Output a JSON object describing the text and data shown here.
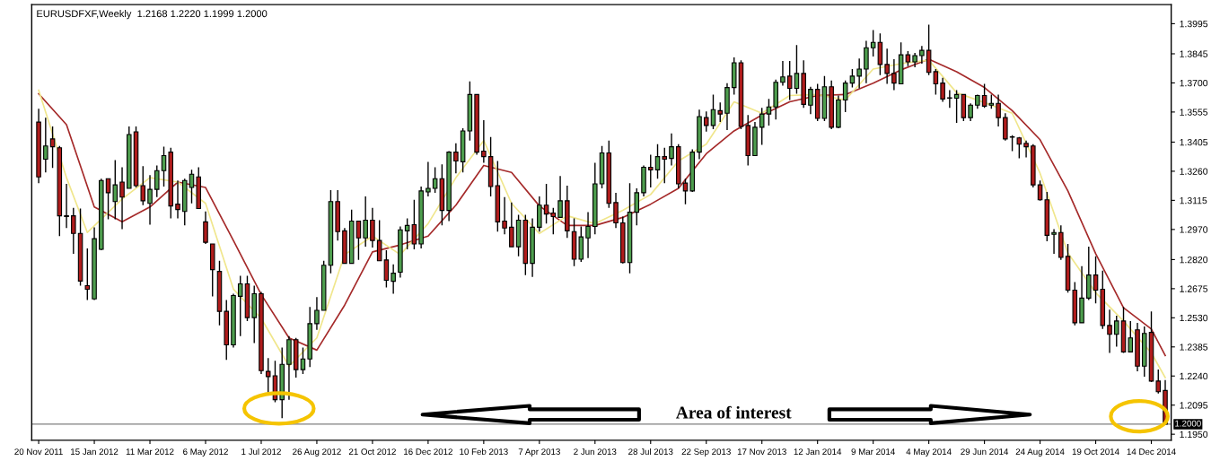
{
  "chart_data": {
    "type": "candlestick",
    "title": "EURUSDFXF,Weekly  1.2168 1.2220 1.1999 1.2000",
    "annotations": [
      "Area of interest"
    ],
    "xlim": [
      "2011-11-13",
      "2015-01-03"
    ],
    "xticks": [
      {
        "value": "2011-11-20",
        "label": "20 Nov 2011"
      },
      {
        "value": "2012-01-15",
        "label": "15 Jan 2012"
      },
      {
        "value": "2012-03-11",
        "label": "11 Mar 2012"
      },
      {
        "value": "2012-05-06",
        "label": "6 May 2012"
      },
      {
        "value": "2012-07-01",
        "label": "1 Jul 2012"
      },
      {
        "value": "2012-08-26",
        "label": "26 Aug 2012"
      },
      {
        "value": "2012-10-21",
        "label": "21 Oct 2012"
      },
      {
        "value": "2012-12-16",
        "label": "16 Dec 2012"
      },
      {
        "value": "2013-02-10",
        "label": "10 Feb 2013"
      },
      {
        "value": "2013-04-07",
        "label": "7 Apr 2013"
      },
      {
        "value": "2013-06-02",
        "label": "2 Jun 2013"
      },
      {
        "value": "2013-07-28",
        "label": "28 Jul 2013"
      },
      {
        "value": "2013-09-22",
        "label": "22 Sep 2013"
      },
      {
        "value": "2013-11-17",
        "label": "17 Nov 2013"
      },
      {
        "value": "2014-01-12",
        "label": "12 Jan 2014"
      },
      {
        "value": "2014-03-09",
        "label": "9 Mar 2014"
      },
      {
        "value": "2014-05-04",
        "label": "4 May 2014"
      },
      {
        "value": "2014-06-29",
        "label": "29 Jun 2014"
      },
      {
        "value": "2014-08-24",
        "label": "24 Aug 2014"
      },
      {
        "value": "2014-10-19",
        "label": "19 Oct 2014"
      },
      {
        "value": "2014-12-14",
        "label": "14 Dec 2014"
      }
    ],
    "ylim": [
      1.192,
      1.409
    ],
    "yticks": [
      1.3995,
      1.3845,
      {
        "value": 1.37,
        "label": "1.3700"
      },
      1.3555,
      1.3405,
      {
        "value": 1.326,
        "label": "1.3260"
      },
      1.3115,
      {
        "value": 1.297,
        "label": "1.2970"
      },
      {
        "value": 1.282,
        "label": "1.2820"
      },
      1.2675,
      {
        "value": 1.253,
        "label": "1.2530"
      },
      1.2385,
      {
        "value": 1.224,
        "label": "1.2240"
      },
      1.2095,
      {
        "value": 1.195,
        "label": "1.1950"
      }
    ],
    "ref_lines": [
      {
        "axis": "y",
        "value": 1.2,
        "label": "1.2000",
        "color": "#808080"
      }
    ],
    "series": [
      {
        "type": "line",
        "color": "#a52a2a",
        "x": [
          "2011-11-20",
          "2011-12-18",
          "2012-01-15",
          "2012-02-12",
          "2012-03-11",
          "2012-04-08",
          "2012-05-06",
          "2012-06-03",
          "2012-07-01",
          "2012-07-29",
          "2012-08-26",
          "2012-09-23",
          "2012-10-21",
          "2012-11-18",
          "2012-12-16",
          "2013-01-13",
          "2013-02-10",
          "2013-03-10",
          "2013-04-07",
          "2013-05-05",
          "2013-06-02",
          "2013-06-30",
          "2013-07-28",
          "2013-08-25",
          "2013-09-22",
          "2013-10-20",
          "2013-11-17",
          "2013-12-15",
          "2014-01-12",
          "2014-02-09",
          "2014-03-09",
          "2014-04-06",
          "2014-05-04",
          "2014-06-01",
          "2014-06-29",
          "2014-07-27",
          "2014-08-24",
          "2014-09-21",
          "2014-10-19",
          "2014-11-16",
          "2014-12-14",
          "2014-12-28"
        ],
        "values": [
          1.3646,
          1.3492,
          1.3082,
          1.3008,
          1.3082,
          1.3206,
          1.3179,
          1.2915,
          1.2646,
          1.243,
          1.2369,
          1.2593,
          1.2858,
          1.2893,
          1.2937,
          1.3091,
          1.3289,
          1.3254,
          1.3087,
          1.299,
          1.299,
          1.303,
          1.3096,
          1.3175,
          1.3347,
          1.3461,
          1.354,
          1.3606,
          1.3637,
          1.3642,
          1.3699,
          1.3765,
          1.3818,
          1.3756,
          1.3677,
          1.3562,
          1.3417,
          1.3162,
          1.2849,
          1.258,
          1.2474,
          1.2342
        ]
      },
      {
        "type": "line",
        "color": "#f0e68c",
        "x": [
          "2011-11-20",
          "2011-12-18",
          "2012-01-08",
          "2012-02-12",
          "2012-03-11",
          "2012-04-08",
          "2012-05-06",
          "2012-06-03",
          "2012-07-01",
          "2012-07-29",
          "2012-08-26",
          "2012-09-23",
          "2012-10-21",
          "2012-11-18",
          "2012-12-16",
          "2013-01-13",
          "2013-02-10",
          "2013-03-10",
          "2013-04-07",
          "2013-05-05",
          "2013-06-02",
          "2013-06-30",
          "2013-07-28",
          "2013-08-25",
          "2013-09-22",
          "2013-10-20",
          "2013-11-17",
          "2013-12-15",
          "2014-01-12",
          "2014-02-09",
          "2014-03-09",
          "2014-04-06",
          "2014-05-04",
          "2014-06-01",
          "2014-06-29",
          "2014-07-27",
          "2014-08-24",
          "2014-09-21",
          "2014-10-19",
          "2014-11-16",
          "2014-12-14",
          "2014-12-28"
        ],
        "values": [
          1.3664,
          1.3228,
          1.2955,
          1.3122,
          1.3228,
          1.3206,
          1.31,
          1.2673,
          1.2527,
          1.2289,
          1.243,
          1.2845,
          1.2937,
          1.2845,
          1.2999,
          1.3228,
          1.3413,
          1.31,
          1.295,
          1.3038,
          1.2999,
          1.3065,
          1.3144,
          1.3311,
          1.3395,
          1.3606,
          1.3549,
          1.3637,
          1.3642,
          1.3615,
          1.3769,
          1.3796,
          1.3813,
          1.3651,
          1.3602,
          1.3549,
          1.325,
          1.2853,
          1.2655,
          1.2514,
          1.2355,
          1.2232
        ]
      },
      {
        "x": [
          "2011-11-20",
          "2011-11-27",
          "2011-12-04",
          "2011-12-11",
          "2011-12-18",
          "2011-12-25",
          "2012-01-01",
          "2012-01-08",
          "2012-01-15",
          "2012-01-22",
          "2012-01-29",
          "2012-02-05",
          "2012-02-12",
          "2012-02-19",
          "2012-02-26",
          "2012-03-04",
          "2012-03-11",
          "2012-03-18",
          "2012-03-25",
          "2012-04-01",
          "2012-04-08",
          "2012-04-15",
          "2012-04-22",
          "2012-04-29",
          "2012-05-06",
          "2012-05-13",
          "2012-05-20",
          "2012-05-27",
          "2012-06-03",
          "2012-06-10",
          "2012-06-17",
          "2012-06-24",
          "2012-07-01",
          "2012-07-08",
          "2012-07-15",
          "2012-07-22",
          "2012-07-29",
          "2012-08-05",
          "2012-08-12",
          "2012-08-19",
          "2012-08-26",
          "2012-09-02",
          "2012-09-09",
          "2012-09-16",
          "2012-09-23",
          "2012-09-30",
          "2012-10-07",
          "2012-10-14",
          "2012-10-21",
          "2012-10-28",
          "2012-11-04",
          "2012-11-11",
          "2012-11-18",
          "2012-11-25",
          "2012-12-02",
          "2012-12-09",
          "2012-12-16",
          "2012-12-23",
          "2012-12-30",
          "2013-01-06",
          "2013-01-13",
          "2013-01-20",
          "2013-01-27",
          "2013-02-03",
          "2013-02-10",
          "2013-02-17",
          "2013-02-24",
          "2013-03-03",
          "2013-03-10",
          "2013-03-17",
          "2013-03-24",
          "2013-03-31",
          "2013-04-07",
          "2013-04-14",
          "2013-04-21",
          "2013-04-28",
          "2013-05-05",
          "2013-05-12",
          "2013-05-19",
          "2013-05-26",
          "2013-06-02",
          "2013-06-09",
          "2013-06-16",
          "2013-06-23",
          "2013-06-30",
          "2013-07-07",
          "2013-07-14",
          "2013-07-21",
          "2013-07-28",
          "2013-08-04",
          "2013-08-11",
          "2013-08-18",
          "2013-08-25",
          "2013-09-01",
          "2013-09-08",
          "2013-09-15",
          "2013-09-22",
          "2013-09-29",
          "2013-10-06",
          "2013-10-13",
          "2013-10-20",
          "2013-10-27",
          "2013-11-03",
          "2013-11-10",
          "2013-11-17",
          "2013-11-24",
          "2013-12-01",
          "2013-12-08",
          "2013-12-15",
          "2013-12-22",
          "2013-12-29",
          "2014-01-05",
          "2014-01-12",
          "2014-01-19",
          "2014-01-26",
          "2014-02-02",
          "2014-02-09",
          "2014-02-16",
          "2014-02-23",
          "2014-03-02",
          "2014-03-09",
          "2014-03-16",
          "2014-03-23",
          "2014-03-30",
          "2014-04-06",
          "2014-04-13",
          "2014-04-20",
          "2014-04-27",
          "2014-05-04",
          "2014-05-11",
          "2014-05-18",
          "2014-05-25",
          "2014-06-01",
          "2014-06-08",
          "2014-06-15",
          "2014-06-22",
          "2014-06-29",
          "2014-07-06",
          "2014-07-13",
          "2014-07-20",
          "2014-07-27",
          "2014-08-03",
          "2014-08-10",
          "2014-08-17",
          "2014-08-24",
          "2014-08-31",
          "2014-09-07",
          "2014-09-14",
          "2014-09-21",
          "2014-09-28",
          "2014-10-05",
          "2014-10-12",
          "2014-10-19",
          "2014-10-26",
          "2014-11-02",
          "2014-11-09",
          "2014-11-16",
          "2014-11-23",
          "2014-11-30",
          "2014-12-07",
          "2014-12-14",
          "2014-12-21",
          "2014-12-28"
        ],
        "ohlc": [
          [
            1.3505,
            1.3571,
            1.3201,
            1.3232
          ],
          [
            1.332,
            1.3527,
            1.3254,
            1.3386
          ],
          [
            1.3421,
            1.3483,
            1.3276,
            1.3382
          ],
          [
            1.3377,
            1.3386,
            1.2937,
            1.3038
          ],
          [
            1.3038,
            1.3197,
            1.2977,
            1.3034
          ],
          [
            1.3038,
            1.3078,
            1.2849,
            1.295
          ],
          [
            1.295,
            1.3074,
            1.269,
            1.2713
          ],
          [
            1.269,
            1.2876,
            1.2619,
            1.2672
          ],
          [
            1.2624,
            1.2981,
            1.2619,
            1.2924
          ],
          [
            1.2871,
            1.3223,
            1.2867,
            1.3214
          ],
          [
            1.3223,
            1.3223,
            1.3021,
            1.3153
          ],
          [
            1.3109,
            1.3316,
            1.3021,
            1.3192
          ],
          [
            1.3206,
            1.328,
            1.2972,
            1.3131
          ],
          [
            1.3175,
            1.3483,
            1.3175,
            1.3443
          ],
          [
            1.3456,
            1.3483,
            1.3179,
            1.3188
          ],
          [
            1.3188,
            1.3285,
            1.3091,
            1.3113
          ],
          [
            1.31,
            1.3241,
            1.2994,
            1.317
          ],
          [
            1.317,
            1.3289,
            1.3131,
            1.3263
          ],
          [
            1.3263,
            1.3382,
            1.3184,
            1.3338
          ],
          [
            1.3355,
            1.3377,
            1.3025,
            1.3087
          ],
          [
            1.3096,
            1.3214,
            1.3025,
            1.3069
          ],
          [
            1.306,
            1.3223,
            1.299,
            1.3214
          ],
          [
            1.3179,
            1.3267,
            1.31,
            1.3245
          ],
          [
            1.3232,
            1.328,
            1.3074,
            1.3074
          ],
          [
            1.3008,
            1.306,
            1.2898,
            1.2906
          ],
          [
            1.2898,
            1.2898,
            1.2637,
            1.277
          ],
          [
            1.2761,
            1.2814,
            1.2492,
            1.2562
          ],
          [
            1.2562,
            1.2619,
            1.232,
            1.2395
          ],
          [
            1.2395,
            1.265,
            1.2382,
            1.2641
          ],
          [
            1.2637,
            1.2739,
            1.2439,
            1.2699
          ],
          [
            1.2699,
            1.2739,
            1.2514,
            1.2531
          ],
          [
            1.2531,
            1.269,
            1.2404,
            1.265
          ],
          [
            1.265,
            1.2659,
            1.225,
            1.2267
          ],
          [
            1.2263,
            1.2329,
            1.2153,
            1.2237
          ],
          [
            1.2241,
            1.2316,
            1.2109,
            1.2122
          ],
          [
            1.2122,
            1.2382,
            1.203,
            1.2298
          ],
          [
            1.2298,
            1.2439,
            1.2122,
            1.2421
          ],
          [
            1.2421,
            1.243,
            1.2232,
            1.2272
          ],
          [
            1.2272,
            1.2382,
            1.225,
            1.2325
          ],
          [
            1.2325,
            1.2584,
            1.2285,
            1.2501
          ],
          [
            1.2501,
            1.2633,
            1.247,
            1.2567
          ],
          [
            1.2567,
            1.2814,
            1.2567,
            1.2792
          ],
          [
            1.2792,
            1.3166,
            1.2752,
            1.3109
          ],
          [
            1.3109,
            1.3166,
            1.2915,
            1.2959
          ],
          [
            1.2963,
            1.2977,
            1.2801,
            1.2801
          ],
          [
            1.2801,
            1.3069,
            1.2801,
            1.3012
          ],
          [
            1.3012,
            1.3012,
            1.2818,
            1.2928
          ],
          [
            1.2928,
            1.3135,
            1.2884,
            1.3016
          ],
          [
            1.3016,
            1.3078,
            1.288,
            1.2915
          ],
          [
            1.2915,
            1.3016,
            1.2814,
            1.2814
          ],
          [
            1.2818,
            1.2867,
            1.2681,
            1.2717
          ],
          [
            1.2712,
            1.2796,
            1.265,
            1.2752
          ],
          [
            1.2757,
            1.2985,
            1.273,
            1.2968
          ],
          [
            1.2963,
            1.3025,
            1.2871,
            1.299
          ],
          [
            1.2994,
            1.3118,
            1.2871,
            1.2898
          ],
          [
            1.2898,
            1.3184,
            1.2876,
            1.3162
          ],
          [
            1.3157,
            1.3307,
            1.3135,
            1.3175
          ],
          [
            1.3175,
            1.328,
            1.3153,
            1.3223
          ],
          [
            1.3223,
            1.3294,
            1.299,
            1.3065
          ],
          [
            1.3065,
            1.336,
            1.3012,
            1.3355
          ],
          [
            1.3355,
            1.3399,
            1.325,
            1.3311
          ],
          [
            1.3307,
            1.3474,
            1.3254,
            1.3461
          ],
          [
            1.3461,
            1.3708,
            1.3413,
            1.3642
          ],
          [
            1.3642,
            1.3642,
            1.3342,
            1.3355
          ],
          [
            1.336,
            1.3514,
            1.3302,
            1.3333
          ],
          [
            1.3333,
            1.343,
            1.3135,
            1.3184
          ],
          [
            1.3188,
            1.3311,
            1.2959,
            1.3008
          ],
          [
            1.3012,
            1.3131,
            1.2946,
            1.2977
          ],
          [
            1.2981,
            1.3104,
            1.2884,
            1.2884
          ],
          [
            1.2884,
            1.3043,
            1.2836,
            1.3016
          ],
          [
            1.3016,
            1.3043,
            1.2743,
            1.2801
          ],
          [
            1.2801,
            1.3025,
            1.2734,
            1.2981
          ],
          [
            1.2981,
            1.3135,
            1.2959,
            1.3091
          ],
          [
            1.3091,
            1.3197,
            1.2999,
            1.3047
          ],
          [
            1.3052,
            1.3078,
            1.2946,
            1.3034
          ],
          [
            1.303,
            1.3236,
            1.303,
            1.3113
          ],
          [
            1.3113,
            1.3188,
            1.2928,
            1.2963
          ],
          [
            1.2959,
            1.3025,
            1.2787,
            1.2822
          ],
          [
            1.2822,
            1.2985,
            1.2809,
            1.2933
          ],
          [
            1.2928,
            1.3056,
            1.2827,
            1.2985
          ],
          [
            1.2985,
            1.3302,
            1.2946,
            1.3197
          ],
          [
            1.3197,
            1.3386,
            1.3175,
            1.3351
          ],
          [
            1.3351,
            1.3413,
            1.3078,
            1.31
          ],
          [
            1.3104,
            1.3153,
            1.2977,
            1.3003
          ],
          [
            1.3003,
            1.3034,
            1.2801,
            1.2805
          ],
          [
            1.2805,
            1.3201,
            1.2752,
            1.3056
          ],
          [
            1.3056,
            1.3175,
            1.299,
            1.3153
          ],
          [
            1.3153,
            1.3289,
            1.3135,
            1.328
          ],
          [
            1.328,
            1.3342,
            1.3179,
            1.3267
          ],
          [
            1.3267,
            1.3395,
            1.3223,
            1.3333
          ],
          [
            1.3333,
            1.3377,
            1.3201,
            1.332
          ],
          [
            1.3324,
            1.3448,
            1.3289,
            1.3382
          ],
          [
            1.3382,
            1.3395,
            1.3175,
            1.3197
          ],
          [
            1.3201,
            1.3223,
            1.3096,
            1.3162
          ],
          [
            1.3162,
            1.3369,
            1.3157,
            1.3355
          ],
          [
            1.3355,
            1.3567,
            1.332,
            1.3532
          ],
          [
            1.3527,
            1.3558,
            1.3457,
            1.3488
          ],
          [
            1.3488,
            1.3642,
            1.347,
            1.3567
          ],
          [
            1.3562,
            1.3602,
            1.3505,
            1.3545
          ],
          [
            1.3549,
            1.3699,
            1.3465,
            1.3677
          ],
          [
            1.3677,
            1.3827,
            1.3642,
            1.38
          ],
          [
            1.38,
            1.3813,
            1.347,
            1.3483
          ],
          [
            1.3488,
            1.354,
            1.3289,
            1.3338
          ],
          [
            1.3338,
            1.3505,
            1.3338,
            1.3479
          ],
          [
            1.3479,
            1.3576,
            1.3391,
            1.3545
          ],
          [
            1.3545,
            1.362,
            1.3488,
            1.358
          ],
          [
            1.358,
            1.3717,
            1.3518,
            1.3703
          ],
          [
            1.3703,
            1.3809,
            1.3686,
            1.373
          ],
          [
            1.3734,
            1.3809,
            1.3615,
            1.3673
          ],
          [
            1.3673,
            1.3888,
            1.3646,
            1.3747
          ],
          [
            1.3747,
            1.3813,
            1.3576,
            1.3593
          ],
          [
            1.3589,
            1.3681,
            1.3545,
            1.3668
          ],
          [
            1.3668,
            1.3695,
            1.351,
            1.3523
          ],
          [
            1.3523,
            1.3734,
            1.351,
            1.3681
          ],
          [
            1.3681,
            1.3712,
            1.347,
            1.3479
          ],
          [
            1.3479,
            1.3637,
            1.3474,
            1.3615
          ],
          [
            1.3615,
            1.3712,
            1.3554,
            1.3699
          ],
          [
            1.3699,
            1.3769,
            1.3677,
            1.3734
          ],
          [
            1.3734,
            1.3822,
            1.3673,
            1.3769
          ],
          [
            1.3769,
            1.391,
            1.3699,
            1.3875
          ],
          [
            1.3875,
            1.3963,
            1.3831,
            1.3902
          ],
          [
            1.3902,
            1.3946,
            1.3739,
            1.3792
          ],
          [
            1.3792,
            1.3871,
            1.3695,
            1.3747
          ],
          [
            1.3747,
            1.3818,
            1.3664,
            1.3699
          ],
          [
            1.3695,
            1.3902,
            1.3695,
            1.384
          ],
          [
            1.384,
            1.3858,
            1.3783,
            1.3805
          ],
          [
            1.3805,
            1.3849,
            1.3778,
            1.3836
          ],
          [
            1.3836,
            1.3884,
            1.3796,
            1.3862
          ],
          [
            1.3862,
            1.399,
            1.3739,
            1.3752
          ],
          [
            1.3756,
            1.3769,
            1.3642,
            1.3695
          ],
          [
            1.3699,
            1.3725,
            1.3606,
            1.362
          ],
          [
            1.3624,
            1.3664,
            1.3576,
            1.3624
          ],
          [
            1.3624,
            1.3664,
            1.3501,
            1.3642
          ],
          [
            1.3642,
            1.3642,
            1.351,
            1.3527
          ],
          [
            1.3527,
            1.3598,
            1.351,
            1.3589
          ],
          [
            1.3589,
            1.3642,
            1.3571,
            1.3637
          ],
          [
            1.3637,
            1.3695,
            1.3576,
            1.3584
          ],
          [
            1.3589,
            1.3642,
            1.3571,
            1.3598
          ],
          [
            1.3598,
            1.3642,
            1.3483,
            1.3527
          ],
          [
            1.3527,
            1.3549,
            1.3413,
            1.3421
          ],
          [
            1.343,
            1.3439,
            1.336,
            1.343
          ],
          [
            1.3426,
            1.343,
            1.3325,
            1.3395
          ],
          [
            1.3399,
            1.3413,
            1.3329,
            1.3382
          ],
          [
            1.3386,
            1.3395,
            1.3179,
            1.3192
          ],
          [
            1.3192,
            1.3214,
            1.3113,
            1.3118
          ],
          [
            1.3118,
            1.3157,
            1.2911,
            1.2941
          ],
          [
            1.2946,
            1.2972,
            1.2849,
            1.2955
          ],
          [
            1.2955,
            1.299,
            1.2818,
            1.2831
          ],
          [
            1.2836,
            1.2898,
            1.2655,
            1.2668
          ],
          [
            1.2668,
            1.2708,
            1.2492,
            1.2505
          ],
          [
            1.2505,
            1.2787,
            1.2505,
            1.2628
          ],
          [
            1.2628,
            1.2884,
            1.2619,
            1.2743
          ],
          [
            1.2743,
            1.2836,
            1.2602,
            1.2668
          ],
          [
            1.2672,
            1.2765,
            1.2474,
            1.2492
          ],
          [
            1.2492,
            1.2571,
            1.2355,
            1.2448
          ],
          [
            1.2448,
            1.254,
            1.2386,
            1.2514
          ],
          [
            1.2514,
            1.2584,
            1.2355,
            1.236
          ],
          [
            1.236,
            1.2514,
            1.236,
            1.243
          ],
          [
            1.247,
            1.2505,
            1.2263,
            1.2289
          ],
          [
            1.2289,
            1.2487,
            1.2237,
            1.2452
          ],
          [
            1.2457,
            1.2562,
            1.221,
            1.2215
          ],
          [
            1.2215,
            1.2272,
            1.2153,
            1.2162
          ],
          [
            1.2168,
            1.222,
            1.1999,
            1.2
          ]
        ],
        "colors": [
          "#b01c1c",
          "#4e9e4e",
          "#b01c1c",
          "#b01c1c",
          "#b01c1c",
          "#b01c1c",
          "#b01c1c",
          "#b01c1c",
          "#4e9e4e",
          "#4e9e4e",
          "#b01c1c",
          "#4e9e4e",
          "#b01c1c",
          "#4e9e4e",
          "#b01c1c",
          "#b01c1c",
          "#4e9e4e",
          "#4e9e4e",
          "#4e9e4e",
          "#b01c1c",
          "#b01c1c",
          "#4e9e4e",
          "#4e9e4e",
          "#b01c1c",
          "#b01c1c",
          "#b01c1c",
          "#b01c1c",
          "#b01c1c",
          "#4e9e4e",
          "#4e9e4e",
          "#b01c1c",
          "#4e9e4e",
          "#b01c1c",
          "#b01c1c",
          "#b01c1c",
          "#4e9e4e",
          "#4e9e4e",
          "#b01c1c",
          "#4e9e4e",
          "#4e9e4e",
          "#4e9e4e",
          "#4e9e4e",
          "#4e9e4e",
          "#b01c1c",
          "#b01c1c",
          "#4e9e4e",
          "#b01c1c",
          "#4e9e4e",
          "#b01c1c",
          "#b01c1c",
          "#b01c1c",
          "#4e9e4e",
          "#4e9e4e",
          "#4e9e4e",
          "#b01c1c",
          "#4e9e4e",
          "#4e9e4e",
          "#4e9e4e",
          "#b01c1c",
          "#4e9e4e",
          "#b01c1c",
          "#4e9e4e",
          "#4e9e4e",
          "#b01c1c",
          "#b01c1c",
          "#b01c1c",
          "#b01c1c",
          "#b01c1c",
          "#b01c1c",
          "#4e9e4e",
          "#b01c1c",
          "#4e9e4e",
          "#4e9e4e",
          "#b01c1c",
          "#b01c1c",
          "#4e9e4e",
          "#b01c1c",
          "#b01c1c",
          "#4e9e4e",
          "#4e9e4e",
          "#4e9e4e",
          "#4e9e4e",
          "#b01c1c",
          "#b01c1c",
          "#b01c1c",
          "#4e9e4e",
          "#4e9e4e",
          "#4e9e4e",
          "#b01c1c",
          "#4e9e4e",
          "#b01c1c",
          "#4e9e4e",
          "#b01c1c",
          "#b01c1c",
          "#4e9e4e",
          "#4e9e4e",
          "#b01c1c",
          "#4e9e4e",
          "#b01c1c",
          "#4e9e4e",
          "#4e9e4e",
          "#b01c1c",
          "#b01c1c",
          "#4e9e4e",
          "#4e9e4e",
          "#4e9e4e",
          "#4e9e4e",
          "#4e9e4e",
          "#b01c1c",
          "#4e9e4e",
          "#b01c1c",
          "#4e9e4e",
          "#b01c1c",
          "#4e9e4e",
          "#b01c1c",
          "#4e9e4e",
          "#4e9e4e",
          "#4e9e4e",
          "#4e9e4e",
          "#4e9e4e",
          "#4e9e4e",
          "#b01c1c",
          "#b01c1c",
          "#b01c1c",
          "#4e9e4e",
          "#b01c1c",
          "#4e9e4e",
          "#4e9e4e",
          "#b01c1c",
          "#b01c1c",
          "#b01c1c",
          "#4e9e4e",
          "#4e9e4e",
          "#b01c1c",
          "#4e9e4e",
          "#4e9e4e",
          "#b01c1c",
          "#4e9e4e",
          "#b01c1c",
          "#b01c1c",
          "#4e9e4e",
          "#b01c1c",
          "#b01c1c",
          "#b01c1c",
          "#b01c1c",
          "#b01c1c",
          "#4e9e4e",
          "#b01c1c",
          "#b01c1c",
          "#b01c1c",
          "#4e9e4e",
          "#4e9e4e",
          "#b01c1c",
          "#b01c1c",
          "#b01c1c",
          "#4e9e4e",
          "#b01c1c",
          "#4e9e4e",
          "#b01c1c",
          "#4e9e4e",
          "#b01c1c",
          "#b01c1c",
          "#b01c1c"
        ]
      }
    ]
  }
}
